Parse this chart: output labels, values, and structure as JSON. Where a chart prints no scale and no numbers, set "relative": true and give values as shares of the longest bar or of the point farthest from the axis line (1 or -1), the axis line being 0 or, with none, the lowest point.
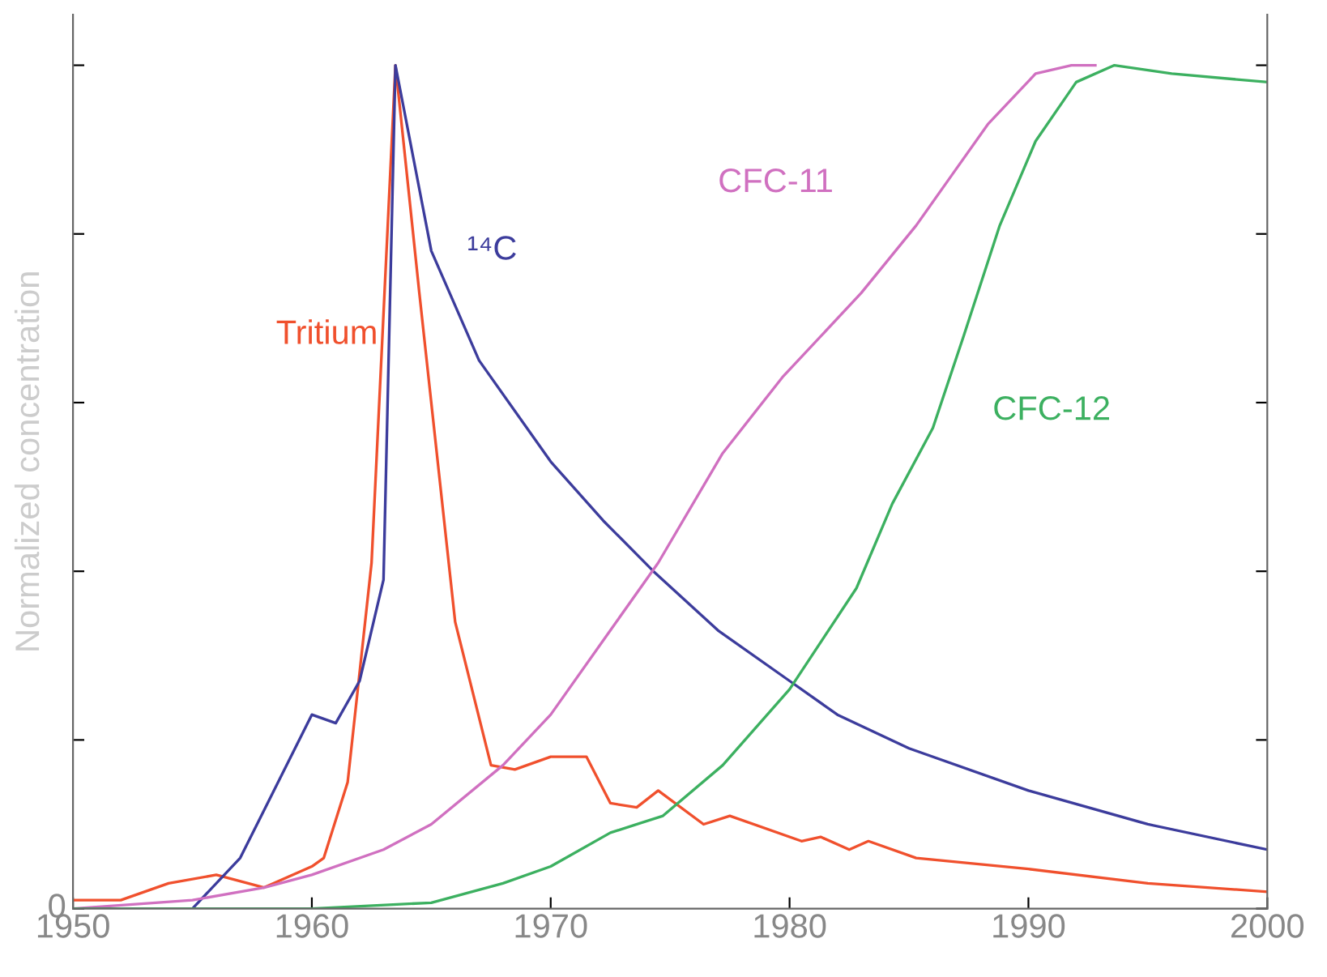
{
  "chart_data": {
    "type": "line",
    "relative": true,
    "ylabel": "Normalized concentration",
    "xlim": [
      1950,
      2000
    ],
    "xticks": [
      1950,
      1960,
      1970,
      1980,
      1990,
      {
        "value": 2000,
        "label": "2000"
      }
    ],
    "annotations": [
      "0"
    ],
    "grid": false,
    "legend": false,
    "marker": "none",
    "line_style": "solid",
    "series": [
      {
        "name": "Tritium",
        "color": "#f0502d",
        "x": [
          1950,
          1952,
          1954,
          1956,
          1958,
          1960,
          1960.5,
          1961.5,
          1962.5,
          1963.5,
          1964.5,
          1966,
          1967.5,
          1968.5,
          1970,
          1971.5,
          1972.5,
          1973.6,
          1974.5,
          1976.4,
          1977.5,
          1980.5,
          1981.3,
          1982.5,
          1983.3,
          1985.3,
          1990,
          1995,
          2000
        ],
        "values": [
          0.01,
          0.01,
          0.03,
          0.04,
          0.025,
          0.05,
          0.06,
          0.15,
          0.41,
          1.0,
          0.73,
          0.34,
          0.17,
          0.165,
          0.18,
          0.18,
          0.125,
          0.12,
          0.14,
          0.1,
          0.11,
          0.08,
          0.085,
          0.07,
          0.08,
          0.06,
          0.047,
          0.03,
          0.02
        ]
      },
      {
        "name": "¹⁴C",
        "color": "#3c3c9c",
        "x": [
          1955,
          1957,
          1960,
          1961,
          1962,
          1963,
          1963.5,
          1965,
          1967,
          1970,
          1972.2,
          1974.3,
          1977,
          1980,
          1982,
          1985,
          1990,
          1995,
          2000
        ],
        "values": [
          0,
          0.06,
          0.23,
          0.22,
          0.27,
          0.39,
          1.0,
          0.78,
          0.65,
          0.53,
          0.46,
          0.4,
          0.33,
          0.27,
          0.23,
          0.19,
          0.14,
          0.1,
          0.07
        ]
      },
      {
        "name": "CFC-11",
        "color": "#d070c0",
        "x": [
          1950,
          1955,
          1958,
          1960,
          1963,
          1965,
          1968,
          1970,
          1972.5,
          1974.5,
          1977.2,
          1979.7,
          1983,
          1985.3,
          1986.8,
          1988.3,
          1990.3,
          1991.8,
          1992.8
        ],
        "values": [
          0,
          0.01,
          0.025,
          0.04,
          0.07,
          0.1,
          0.17,
          0.23,
          0.33,
          0.41,
          0.54,
          0.63,
          0.73,
          0.81,
          0.87,
          0.93,
          0.99,
          1.0,
          1.0
        ]
      },
      {
        "name": "CFC-12",
        "color": "#3cb060",
        "x": [
          1950,
          1960,
          1965,
          1968,
          1970,
          1972.5,
          1974.7,
          1977.2,
          1980,
          1982.8,
          1984.3,
          1986,
          1987.3,
          1988.8,
          1990.3,
          1992,
          1993.6,
          1996,
          2000
        ],
        "values": [
          0,
          0,
          0.007,
          0.03,
          0.05,
          0.09,
          0.11,
          0.17,
          0.26,
          0.38,
          0.48,
          0.57,
          0.68,
          0.81,
          0.91,
          0.98,
          1.0,
          0.99,
          0.98
        ]
      }
    ]
  }
}
